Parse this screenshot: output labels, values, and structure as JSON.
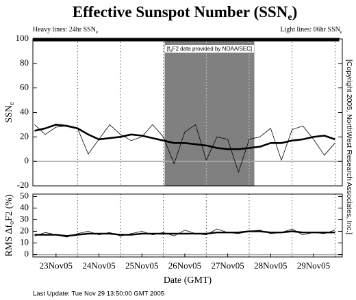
{
  "title_parts": [
    "Effective Sunspot Number (SSN",
    "e",
    ")"
  ],
  "legend_heavy": [
    "Heavy lines: 24hr SSN",
    "e"
  ],
  "legend_light": [
    "Light lines: 06hr SSN",
    "e"
  ],
  "copyright": "[Copyright 2005, NorthWest Research Associates, Inc.]",
  "last_update": "Last Update: Tue Nov 29 13:50:00 GMT 2005",
  "chart_data": [
    {
      "type": "line",
      "ylabel_parts": [
        "SSN",
        "e"
      ],
      "annotation_parts": [
        "[f",
        "o",
        "F2 data provided by NOAA/SEC]"
      ],
      "highlight_xrange": [
        3.03,
        5.12
      ],
      "xlim": [
        -0.04,
        7.17
      ],
      "ylim": [
        -20,
        100
      ],
      "yticks": [
        -20,
        0,
        20,
        40,
        60,
        80,
        100
      ],
      "x": [
        0,
        0.25,
        0.5,
        0.75,
        1,
        1.25,
        1.5,
        1.75,
        2,
        2.25,
        2.5,
        2.75,
        3,
        3.25,
        3.5,
        3.75,
        4,
        4.25,
        4.5,
        4.75,
        5,
        5.25,
        5.5,
        5.75,
        6,
        6.25,
        6.5,
        6.75,
        7
      ],
      "series": [
        {
          "name": "06hr",
          "color": "#000000",
          "width": 0.8,
          "values": [
            30,
            22,
            28,
            29,
            27,
            6,
            18,
            30,
            22,
            17,
            20,
            30,
            20,
            -2,
            24,
            30,
            1,
            20,
            18,
            -9,
            18,
            20,
            27,
            1,
            26,
            29,
            18,
            5,
            15
          ]
        },
        {
          "name": "24hr",
          "color": "#000000",
          "width": 2.6,
          "values": [
            25,
            27,
            30,
            29,
            27,
            22,
            18,
            19,
            20,
            22,
            21,
            19,
            17,
            15,
            15,
            14,
            13,
            11,
            10,
            10,
            11,
            12,
            15,
            15,
            17,
            18,
            20,
            21,
            18
          ]
        }
      ]
    },
    {
      "type": "line",
      "ylabel_parts": [
        "RMS Δf",
        "o",
        "F2 (%)"
      ],
      "xlabel": "Date (GMT)",
      "xlim": [
        -0.04,
        7.17
      ],
      "ylim": [
        -2,
        52
      ],
      "yticks": [
        0,
        10,
        20,
        30,
        40,
        50
      ],
      "xticks": [
        {
          "value": 0.5,
          "label": "23Nov05"
        },
        {
          "value": 1.5,
          "label": "24Nov05"
        },
        {
          "value": 2.5,
          "label": "25Nov05"
        },
        {
          "value": 3.5,
          "label": "26Nov05"
        },
        {
          "value": 4.5,
          "label": "27Nov05"
        },
        {
          "value": 5.5,
          "label": "28Nov05"
        },
        {
          "value": 6.5,
          "label": "29Nov05"
        }
      ],
      "x": [
        0,
        0.25,
        0.5,
        0.75,
        1,
        1.25,
        1.5,
        1.75,
        2,
        2.25,
        2.5,
        2.75,
        3,
        3.25,
        3.5,
        3.75,
        4,
        4.25,
        4.5,
        4.75,
        5,
        5.25,
        5.5,
        5.75,
        6,
        6.25,
        6.5,
        6.75,
        7
      ],
      "series": [
        {
          "name": "06hr",
          "color": "#000000",
          "width": 0.8,
          "values": [
            16,
            19,
            17,
            15,
            18,
            20,
            17,
            19,
            16,
            18,
            20,
            17,
            19,
            16,
            21,
            18,
            17,
            22,
            19,
            18,
            20,
            21,
            18,
            19,
            22,
            17,
            19,
            18,
            21
          ]
        },
        {
          "name": "24hr",
          "color": "#000000",
          "width": 2.4,
          "values": [
            17,
            17,
            17,
            16,
            17,
            18,
            18,
            18,
            17,
            17,
            18,
            18,
            18,
            18,
            18,
            18,
            18,
            19,
            19,
            19,
            20,
            20,
            19,
            19,
            20,
            19,
            19,
            19,
            19
          ]
        }
      ]
    }
  ]
}
